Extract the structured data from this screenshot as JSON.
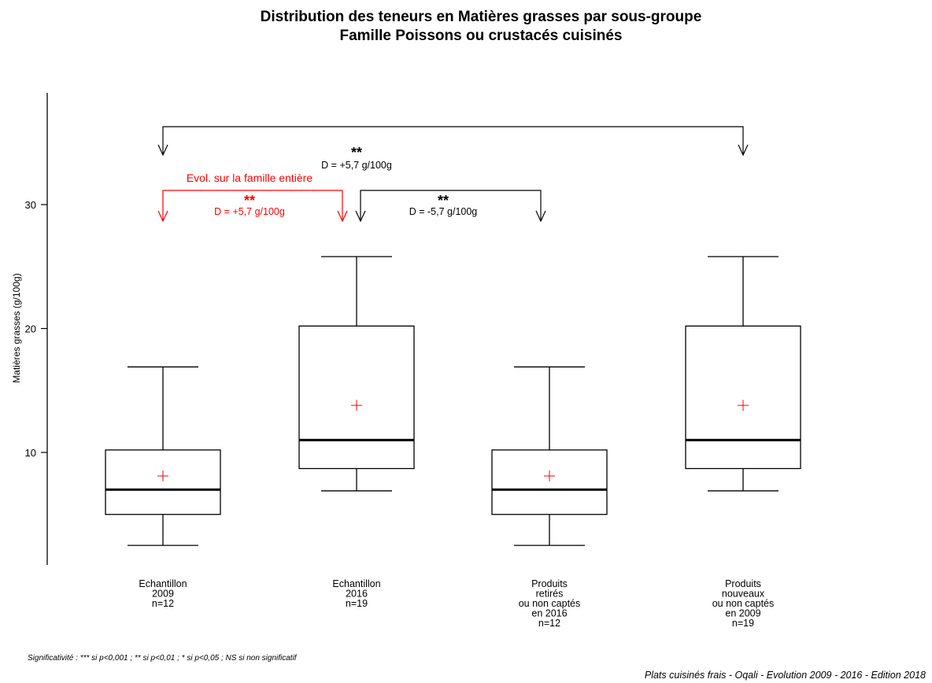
{
  "chart_data": {
    "type": "box",
    "title": "Distribution des teneurs en Matières grasses par sous-groupe",
    "subtitle": "Famille Poissons ou crustacés cuisinés",
    "ylabel": "Matières grasses (g/100g)",
    "ylim": [
      1,
      38
    ],
    "yticks": [
      10,
      20,
      30
    ],
    "ytick_labels": [
      "10",
      "20",
      "30"
    ],
    "grid": false,
    "groups": [
      {
        "label_lines": [
          "Echantillon",
          "2009",
          "n=12"
        ],
        "whisker_low": 2.5,
        "q1": 5.0,
        "median": 7.0,
        "q3": 10.2,
        "whisker_high": 16.9,
        "mean": 8.1
      },
      {
        "label_lines": [
          "Echantillon",
          "2016",
          "n=19"
        ],
        "whisker_low": 6.9,
        "q1": 8.7,
        "median": 11.0,
        "q3": 20.2,
        "whisker_high": 25.8,
        "mean": 13.8
      },
      {
        "label_lines": [
          "Produits",
          "retirés",
          "ou non captés",
          "en 2016",
          "n=12"
        ],
        "whisker_low": 2.5,
        "q1": 5.0,
        "median": 7.0,
        "q3": 10.2,
        "whisker_high": 16.9,
        "mean": 8.1
      },
      {
        "label_lines": [
          "Produits",
          "nouveaux",
          "ou non captés",
          "en 2009",
          "n=19"
        ],
        "whisker_low": 6.9,
        "q1": 8.7,
        "median": 11.0,
        "q3": 20.2,
        "whisker_high": 25.8,
        "mean": 13.8
      }
    ],
    "comparisons": [
      {
        "from": 0,
        "to": 3,
        "stars": "**",
        "diff": "D = +5,7 g/100g",
        "color": "#000000",
        "note": ""
      },
      {
        "from": 0,
        "to": 1,
        "stars": "**",
        "diff": "D = +5,7 g/100g",
        "color": "#ff0000",
        "note": "Evol. sur la famille entière"
      },
      {
        "from": 1,
        "to": 2,
        "stars": "**",
        "diff": "D = -5,7 g/100g",
        "color": "#000000",
        "note": ""
      }
    ],
    "colors": {
      "box": "#000000",
      "mean_marker": "#ff0000",
      "evolution": "#ff0000"
    },
    "footnote": "Significativité : *** si p<0,001 ; ** si p<0,01 ; * si p<0,05 ; NS si non significatif",
    "source": "Plats cuisinés frais - Oqali - Evolution 2009 - 2016 - Edition 2018"
  }
}
